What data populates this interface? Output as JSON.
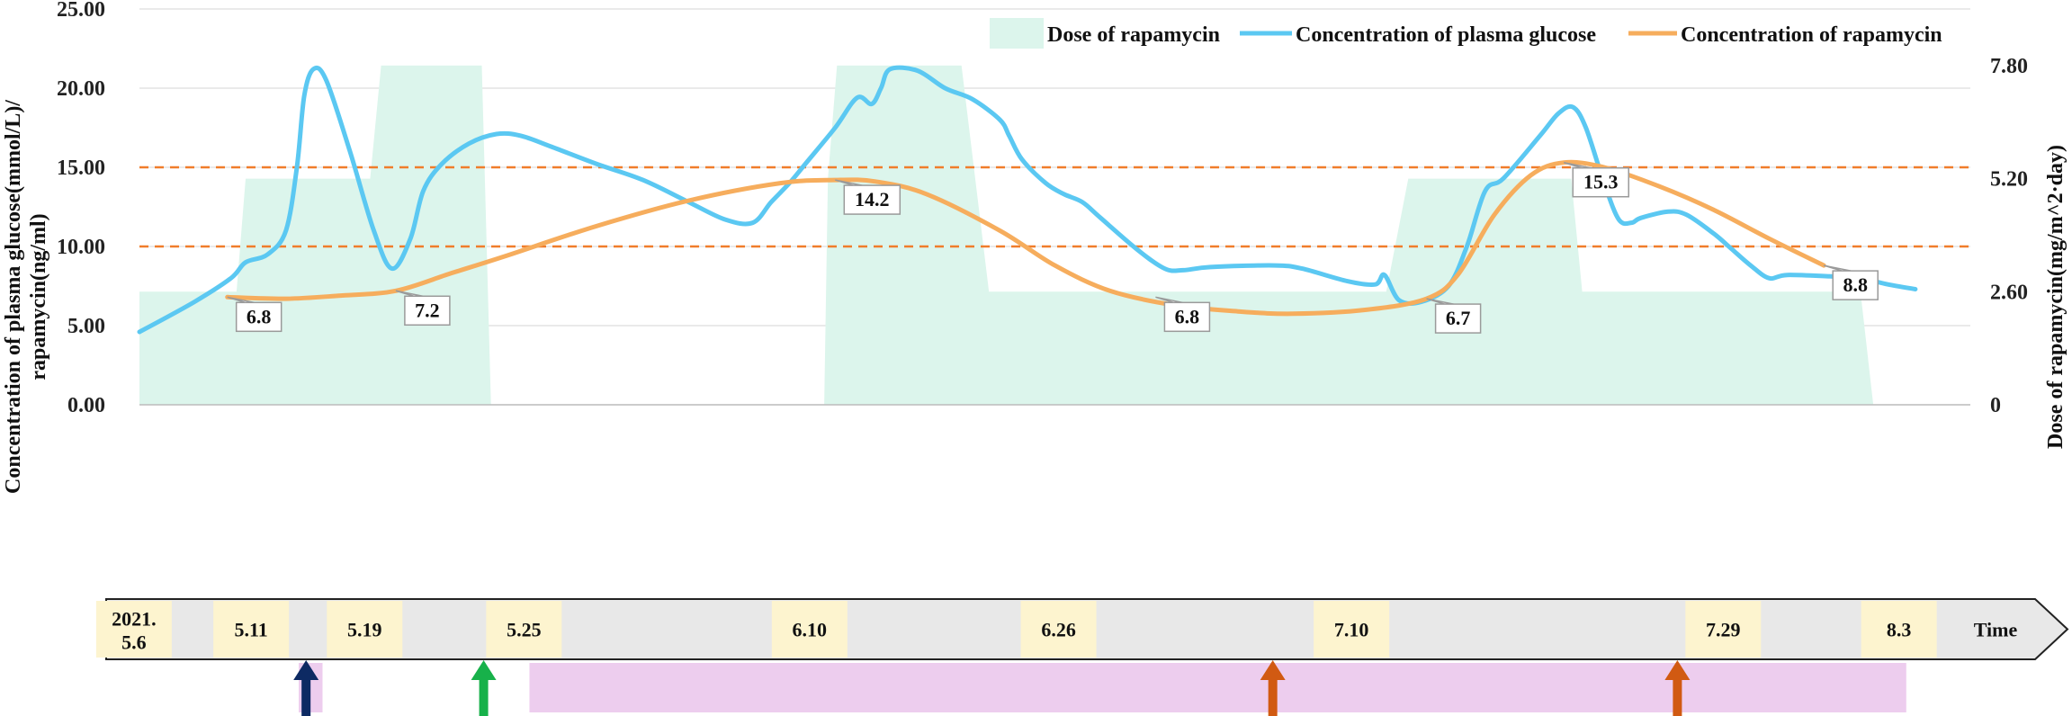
{
  "chart_data": {
    "type": "area+line",
    "title": "",
    "y_left_label_line1": "Concentration of plasma glucose(mmol/L)/",
    "y_left_label_line2": "rapamycin(ng/ml)",
    "y_right_label": "Dose of rapamycin(mg/m^2·day)",
    "x_label": "Time",
    "ylim_left": [
      0,
      25
    ],
    "ylim_right": [
      0,
      9.1
    ],
    "y_left_ticks": [
      "0.00",
      "5.00",
      "10.00",
      "15.00",
      "20.00",
      "25.00"
    ],
    "y_right_ticks": [
      {
        "value": 0,
        "label": "0"
      },
      {
        "value": 2.6,
        "label": "2.60"
      },
      {
        "value": 5.2,
        "label": "5.20"
      },
      {
        "value": 7.8,
        "label": "7.80"
      }
    ],
    "reference_lines": [
      10,
      15
    ],
    "legend": {
      "position": "top-right",
      "dose": "Dose of rapamycin",
      "glucose": "Concentration of plasma glucose",
      "rapamycin": "Concentration of rapamycin"
    },
    "colors": {
      "dose": "#dcf5ec",
      "glucose": "#5bc8f2",
      "rapamycin": "#f6ad5d",
      "reference": "#f07d2b",
      "callout_border": "#9a9a9a",
      "timeline_bar": "#e8e8e8",
      "timeline_date": "#fdf4cf",
      "pink_band": "#edcdee",
      "arrow_navy": "#0d2a63",
      "arrow_green": "#17b14a",
      "arrow_orange": "#d15a12"
    },
    "dose_series": {
      "name": "Dose of rapamycin",
      "points": [
        [
          0,
          0
        ],
        [
          0,
          2.6
        ],
        [
          5.3,
          2.6
        ],
        [
          5.8,
          5.2
        ],
        [
          12.6,
          5.2
        ],
        [
          13.2,
          7.8
        ],
        [
          18.7,
          7.8
        ],
        [
          19.2,
          0
        ],
        [
          37.4,
          0
        ],
        [
          37.6,
          5.2
        ],
        [
          38.1,
          7.8
        ],
        [
          44.9,
          7.8
        ],
        [
          46.4,
          2.6
        ],
        [
          68.1,
          2.6
        ],
        [
          69.3,
          5.2
        ],
        [
          78.2,
          5.2
        ],
        [
          78.8,
          2.6
        ],
        [
          94.0,
          2.6
        ],
        [
          94.7,
          0
        ]
      ]
    },
    "glucose_series": {
      "name": "Concentration of plasma glucose",
      "points": [
        [
          0,
          4.6
        ],
        [
          3.0,
          6.5
        ],
        [
          5.0,
          8.0
        ],
        [
          5.8,
          9.0
        ],
        [
          7.0,
          9.5
        ],
        [
          8.0,
          11.0
        ],
        [
          8.6,
          15.0
        ],
        [
          9.0,
          19.5
        ],
        [
          9.5,
          21.2
        ],
        [
          10.2,
          20.5
        ],
        [
          11.5,
          16.0
        ],
        [
          12.8,
          11.0
        ],
        [
          13.8,
          8.6
        ],
        [
          14.8,
          10.5
        ],
        [
          15.5,
          13.5
        ],
        [
          16.5,
          15.2
        ],
        [
          18.0,
          16.5
        ],
        [
          19.5,
          17.1
        ],
        [
          20.8,
          17.0
        ],
        [
          22.5,
          16.3
        ],
        [
          25.0,
          15.2
        ],
        [
          27.5,
          14.2
        ],
        [
          30.0,
          12.8
        ],
        [
          32.0,
          11.7
        ],
        [
          33.5,
          11.5
        ],
        [
          34.5,
          12.8
        ],
        [
          35.5,
          14.0
        ],
        [
          36.5,
          15.4
        ],
        [
          38.0,
          17.5
        ],
        [
          39.2,
          19.4
        ],
        [
          40.0,
          19.0
        ],
        [
          40.5,
          20.0
        ],
        [
          41.0,
          21.2
        ],
        [
          42.5,
          21.1
        ],
        [
          44.0,
          20.0
        ],
        [
          45.5,
          19.3
        ],
        [
          47.0,
          18.0
        ],
        [
          47.5,
          17.0
        ],
        [
          48.2,
          15.5
        ],
        [
          49.5,
          14.0
        ],
        [
          50.5,
          13.3
        ],
        [
          51.5,
          12.8
        ],
        [
          52.5,
          11.8
        ],
        [
          54.5,
          9.8
        ],
        [
          56.0,
          8.6
        ],
        [
          57.0,
          8.5
        ],
        [
          58.5,
          8.7
        ],
        [
          62.0,
          8.8
        ],
        [
          63.5,
          8.6
        ],
        [
          66.0,
          7.8
        ],
        [
          67.5,
          7.6
        ],
        [
          68.0,
          8.2
        ],
        [
          68.8,
          6.6
        ],
        [
          70.0,
          6.5
        ],
        [
          71.5,
          7.5
        ],
        [
          72.5,
          10.0
        ],
        [
          73.5,
          13.5
        ],
        [
          74.5,
          14.3
        ],
        [
          76.5,
          17.0
        ],
        [
          77.5,
          18.4
        ],
        [
          78.3,
          18.8
        ],
        [
          79.0,
          17.5
        ],
        [
          80.0,
          14.0
        ],
        [
          80.8,
          11.7
        ],
        [
          81.5,
          11.5
        ],
        [
          82.0,
          11.8
        ],
        [
          83.5,
          12.2
        ],
        [
          84.5,
          12.0
        ],
        [
          86.0,
          10.8
        ],
        [
          87.0,
          9.8
        ],
        [
          88.0,
          8.8
        ],
        [
          89.0,
          8.0
        ],
        [
          90.0,
          8.2
        ],
        [
          92.5,
          8.1
        ],
        [
          94.0,
          8.0
        ],
        [
          95.5,
          7.6
        ],
        [
          97.0,
          7.3
        ]
      ]
    },
    "rapamycin_series": {
      "name": "Concentration of rapamycin",
      "points": [
        [
          4.8,
          6.8
        ],
        [
          8.0,
          6.7
        ],
        [
          11.0,
          6.9
        ],
        [
          14.0,
          7.2
        ],
        [
          17.0,
          8.3
        ],
        [
          20.0,
          9.4
        ],
        [
          25.0,
          11.3
        ],
        [
          30.0,
          12.9
        ],
        [
          35.0,
          14.0
        ],
        [
          38.0,
          14.2
        ],
        [
          40.2,
          14.1
        ],
        [
          43.0,
          13.3
        ],
        [
          47.0,
          11.0
        ],
        [
          50.0,
          8.8
        ],
        [
          53.0,
          7.2
        ],
        [
          56.5,
          6.3
        ],
        [
          60.0,
          5.9
        ],
        [
          63.0,
          5.75
        ],
        [
          67.0,
          6.0
        ],
        [
          70.3,
          6.7
        ],
        [
          72.0,
          8.2
        ],
        [
          74.0,
          12.0
        ],
        [
          76.0,
          14.5
        ],
        [
          77.8,
          15.3
        ],
        [
          80.0,
          15.0
        ],
        [
          83.0,
          13.8
        ],
        [
          86.0,
          12.3
        ],
        [
          89.0,
          10.5
        ],
        [
          92.0,
          8.8
        ]
      ]
    },
    "data_labels": [
      {
        "x": 4.8,
        "y": 6.8,
        "text": "6.8"
      },
      {
        "x": 14.0,
        "y": 7.2,
        "text": "7.2"
      },
      {
        "x": 38.0,
        "y": 14.2,
        "text": "14.2"
      },
      {
        "x": 55.5,
        "y": 6.8,
        "text": "6.8"
      },
      {
        "x": 70.3,
        "y": 6.7,
        "text": "6.7"
      },
      {
        "x": 77.8,
        "y": 15.3,
        "text": "15.3"
      },
      {
        "x": 92.0,
        "y": 8.8,
        "text": "8.8"
      }
    ],
    "timeline": {
      "dates": [
        {
          "x": -0.3,
          "lines": [
            "2021.",
            "5.6"
          ]
        },
        {
          "x": 6.1,
          "lines": [
            "5.11"
          ]
        },
        {
          "x": 12.3,
          "lines": [
            "5.19"
          ]
        },
        {
          "x": 21.0,
          "lines": [
            "5.25"
          ]
        },
        {
          "x": 36.6,
          "lines": [
            "6.10"
          ]
        },
        {
          "x": 50.2,
          "lines": [
            "6.26"
          ]
        },
        {
          "x": 66.2,
          "lines": [
            "7.10"
          ]
        },
        {
          "x": 86.5,
          "lines": [
            "7.29"
          ]
        },
        {
          "x": 96.1,
          "lines": [
            "8.3"
          ]
        }
      ],
      "end_label": "Time",
      "pink_bands": [
        [
          8.7,
          10.0
        ],
        [
          21.3,
          96.5
        ]
      ],
      "arrows": [
        {
          "x": 9.1,
          "color": "arrow_navy"
        },
        {
          "x": 18.8,
          "color": "arrow_green"
        },
        {
          "x": 61.9,
          "color": "arrow_orange"
        },
        {
          "x": 84.0,
          "color": "arrow_orange"
        }
      ]
    }
  }
}
